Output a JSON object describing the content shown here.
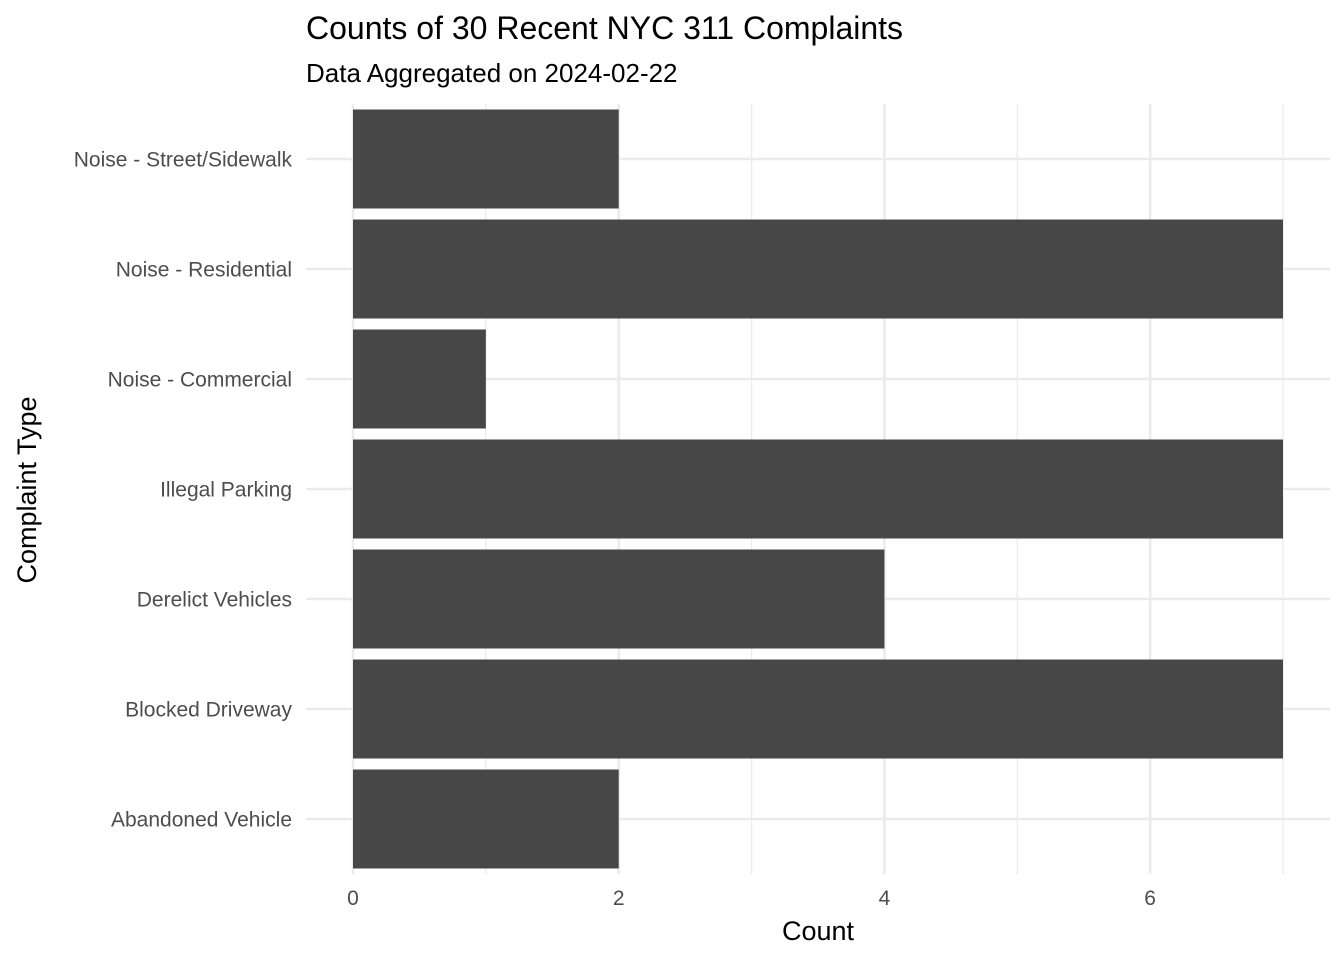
{
  "chart_data": {
    "type": "bar",
    "orientation": "horizontal",
    "title": "Counts of 30 Recent NYC 311 Complaints",
    "subtitle": "Data Aggregated on 2024-02-22",
    "xlabel": "Count",
    "ylabel": "Complaint Type",
    "categories": [
      "Abandoned Vehicle",
      "Blocked Driveway",
      "Derelict Vehicles",
      "Illegal Parking",
      "Noise - Commercial",
      "Noise - Residential",
      "Noise - Street/Sidewalk"
    ],
    "values": [
      2,
      7,
      4,
      7,
      1,
      7,
      2
    ],
    "xlim": [
      0,
      7
    ],
    "x_ticks": [
      0,
      2,
      4,
      6
    ],
    "grid": true,
    "bar_color": "#474747",
    "grid_color": "#ebebeb"
  }
}
